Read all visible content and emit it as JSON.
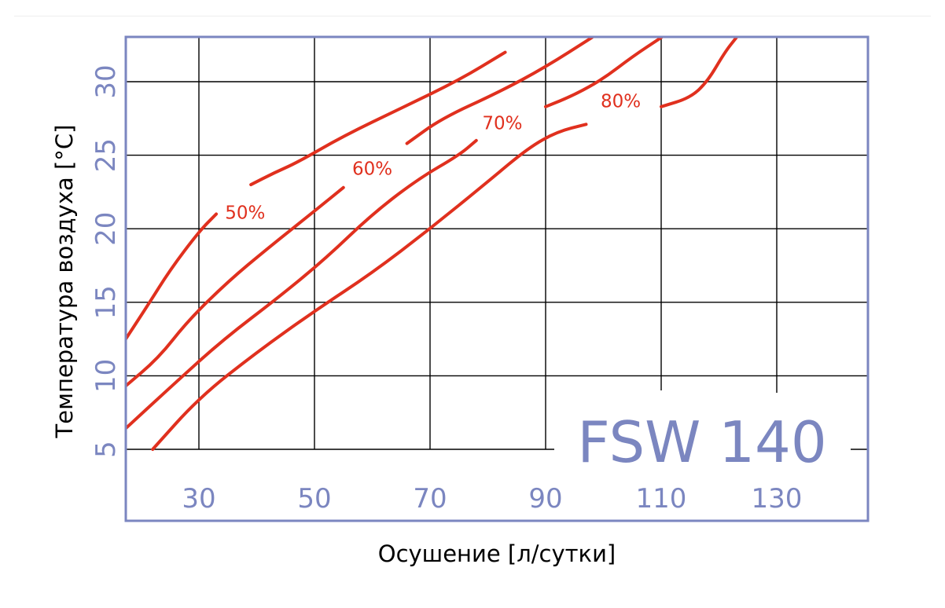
{
  "chart_data": {
    "type": "line",
    "title": "",
    "model_label": "FSW 140",
    "xlabel": "Осушение [л/сутки]",
    "ylabel": "Температура воздуха [°C]",
    "xlim": [
      17,
      145
    ],
    "ylim": [
      0,
      33
    ],
    "x_ticks": [
      30,
      50,
      70,
      90,
      110,
      130
    ],
    "y_ticks": [
      5,
      10,
      15,
      20,
      25,
      30
    ],
    "grid": true,
    "colors": {
      "frame": "#7b86c0",
      "tick_text": "#7b86c0",
      "curve": "#e0301e",
      "grid": "#000000",
      "label": "#000000"
    },
    "series": [
      {
        "name": "50%",
        "points": [
          [
            17,
            12.3
          ],
          [
            21,
            14.7
          ],
          [
            25,
            17.2
          ],
          [
            30,
            19.8
          ],
          [
            33,
            21.0
          ],
          [
            36,
            22.0
          ],
          [
            39,
            23.0
          ],
          [
            43,
            23.8
          ],
          [
            47,
            24.5
          ],
          [
            55,
            26.3
          ],
          [
            65,
            28.2
          ],
          [
            75,
            30.1
          ],
          [
            83,
            32.0
          ]
        ]
      },
      {
        "name": "60%",
        "points": [
          [
            17,
            9.2
          ],
          [
            23,
            11.2
          ],
          [
            28,
            13.7
          ],
          [
            35,
            16.4
          ],
          [
            42,
            18.7
          ],
          [
            50,
            21.2
          ],
          [
            55,
            22.8
          ],
          [
            58,
            24.2
          ],
          [
            62,
            24.7
          ],
          [
            66,
            25.8
          ],
          [
            72,
            27.5
          ],
          [
            82,
            29.3
          ],
          [
            90,
            31.0
          ],
          [
            98,
            33.0
          ]
        ]
      },
      {
        "name": "70%",
        "points": [
          [
            17,
            6.3
          ],
          [
            25,
            9.2
          ],
          [
            34,
            12.4
          ],
          [
            44,
            15.4
          ],
          [
            52,
            18.0
          ],
          [
            60,
            21.0
          ],
          [
            68,
            23.4
          ],
          [
            75,
            25.0
          ],
          [
            78,
            26.0
          ],
          [
            82,
            26.3
          ],
          [
            87,
            27.4
          ],
          [
            90,
            28.3
          ],
          [
            95,
            29.1
          ],
          [
            100,
            30.2
          ],
          [
            105,
            31.7
          ],
          [
            110,
            33.0
          ]
        ]
      },
      {
        "name": "80%",
        "points": [
          [
            22,
            5.0
          ],
          [
            30,
            8.5
          ],
          [
            40,
            11.6
          ],
          [
            50,
            14.4
          ],
          [
            60,
            17.0
          ],
          [
            70,
            20.0
          ],
          [
            80,
            23.2
          ],
          [
            87,
            25.5
          ],
          [
            92,
            26.6
          ],
          [
            97,
            27.1
          ],
          [
            102,
            27.6
          ],
          [
            106,
            28.0
          ],
          [
            110,
            28.3
          ],
          [
            115,
            28.9
          ],
          [
            118,
            30.0
          ],
          [
            121,
            32.0
          ],
          [
            123,
            33.0
          ]
        ]
      }
    ],
    "point_labels": [
      {
        "text": "50%",
        "x": 38,
        "y": 21.1
      },
      {
        "text": "60%",
        "x": 60,
        "y": 24.1
      },
      {
        "text": "70%",
        "x": 82.5,
        "y": 27.2
      },
      {
        "text": "80%",
        "x": 103,
        "y": 28.7
      }
    ]
  }
}
